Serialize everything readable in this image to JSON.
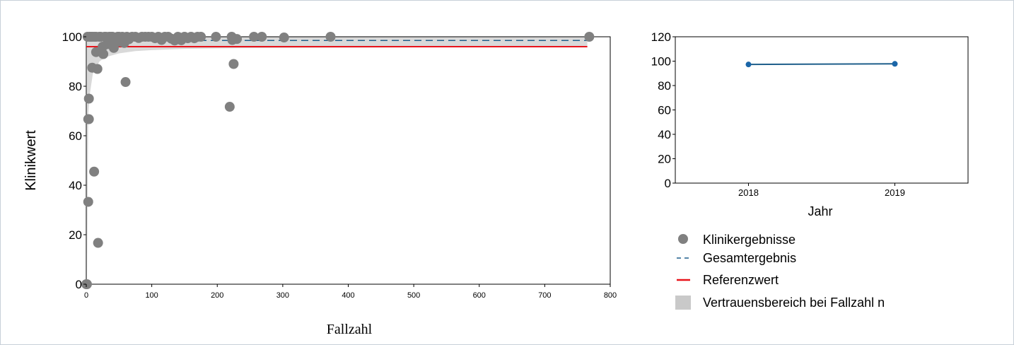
{
  "colors": {
    "points": "#808080",
    "gesamt": "#1f5f8b",
    "referenz": "#e8141b",
    "band": "#d9d9d9",
    "trend": "#1f5f8b",
    "trend_point": "#1b66a8"
  },
  "chart_data": [
    {
      "type": "scatter",
      "xlabel": "Fallzahl",
      "ylabel": "Klinikwert",
      "xlim": [
        0,
        800
      ],
      "ylim": [
        0,
        100
      ],
      "x_ticks": [
        0,
        100,
        200,
        300,
        400,
        500,
        600,
        700,
        800
      ],
      "y_ticks": [
        0,
        20,
        40,
        60,
        80,
        100
      ],
      "grid": false,
      "reference_value": 96,
      "overall_result": 98.5,
      "confidence_band": {
        "n": [
          1,
          3,
          5,
          10,
          20,
          30,
          50,
          75,
          100,
          150,
          200,
          300,
          400,
          500,
          600,
          765
        ],
        "lower": [
          0,
          68,
          76,
          85,
          90,
          91.8,
          93.3,
          94.2,
          94.6,
          95.1,
          95.3,
          95.5,
          95.6,
          95.7,
          95.7,
          95.8
        ]
      },
      "points": [
        [
          0,
          0
        ],
        [
          1,
          0
        ],
        [
          2,
          100
        ],
        [
          3,
          33.3
        ],
        [
          3,
          66.7
        ],
        [
          4,
          75
        ],
        [
          4,
          66.7
        ],
        [
          5,
          100
        ],
        [
          7,
          100
        ],
        [
          8,
          100
        ],
        [
          9,
          87.5
        ],
        [
          10,
          100
        ],
        [
          12,
          45.5
        ],
        [
          13,
          100
        ],
        [
          15,
          93.8
        ],
        [
          15,
          100
        ],
        [
          17,
          87
        ],
        [
          18,
          16.7
        ],
        [
          20,
          100
        ],
        [
          22,
          100
        ],
        [
          25,
          96
        ],
        [
          26,
          93
        ],
        [
          28,
          100
        ],
        [
          30,
          100
        ],
        [
          32,
          97
        ],
        [
          35,
          100
        ],
        [
          38,
          100
        ],
        [
          40,
          100
        ],
        [
          42,
          95.5
        ],
        [
          45,
          98
        ],
        [
          48,
          100
        ],
        [
          50,
          100
        ],
        [
          52,
          98
        ],
        [
          55,
          100
        ],
        [
          58,
          97.5
        ],
        [
          60,
          81.7
        ],
        [
          62,
          100
        ],
        [
          65,
          99
        ],
        [
          70,
          100
        ],
        [
          75,
          100
        ],
        [
          80,
          99.5
        ],
        [
          85,
          100
        ],
        [
          90,
          100
        ],
        [
          95,
          100
        ],
        [
          100,
          100
        ],
        [
          105,
          99.4
        ],
        [
          110,
          100
        ],
        [
          115,
          98.7
        ],
        [
          120,
          100
        ],
        [
          125,
          100
        ],
        [
          130,
          99.2
        ],
        [
          135,
          98.5
        ],
        [
          140,
          100
        ],
        [
          145,
          98.6
        ],
        [
          150,
          100
        ],
        [
          155,
          99.4
        ],
        [
          160,
          100
        ],
        [
          165,
          99.4
        ],
        [
          170,
          100
        ],
        [
          175,
          100
        ],
        [
          198,
          100
        ],
        [
          219,
          71.7
        ],
        [
          222,
          100
        ],
        [
          223,
          98.7
        ],
        [
          225,
          89
        ],
        [
          230,
          99.1
        ],
        [
          256,
          100
        ],
        [
          268,
          100
        ],
        [
          302,
          99.7
        ],
        [
          373,
          100
        ],
        [
          768,
          100
        ]
      ]
    },
    {
      "type": "line",
      "xlabel": "Jahr",
      "categories": [
        "2018",
        "2019"
      ],
      "values": [
        97.3,
        97.8
      ],
      "ylim": [
        0,
        120
      ],
      "y_ticks": [
        0,
        20,
        40,
        60,
        80,
        100,
        120
      ],
      "grid": false
    }
  ],
  "legend": {
    "placement": "bottom-right",
    "items": [
      {
        "symbol": "circle",
        "label": "Klinikergebnisse"
      },
      {
        "symbol": "dashed-line",
        "label": "Gesamtergebnis"
      },
      {
        "symbol": "solid-line",
        "label": "Referenzwert"
      },
      {
        "symbol": "gray-box",
        "label": "Vertrauensbereich bei Fallzahl n"
      }
    ]
  }
}
